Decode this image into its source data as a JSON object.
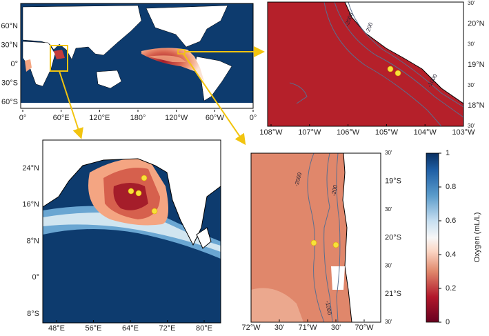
{
  "world_map": {
    "lat_labels": [
      "60°N",
      "30°N",
      "0°",
      "30°S",
      "60°S"
    ],
    "lon_labels": [
      "0°",
      "60°E",
      "120°E",
      "180°",
      "120°W",
      "60°W",
      "0°"
    ]
  },
  "east_pacific_map": {
    "lon_labels": [
      "108°W",
      "107°W",
      "106°W",
      "105°W",
      "104°W",
      "103°W"
    ],
    "lat_labels": [
      "30'",
      "20°N",
      "30'",
      "19°N",
      "30'",
      "18°N",
      "30'"
    ],
    "contour_labels": [
      "-2000",
      "-200",
      "-1000"
    ]
  },
  "arabian_sea_map": {
    "lat_labels": [
      "24°N",
      "16°N",
      "8°N",
      "0°",
      "8°S"
    ],
    "lon_labels": [
      "48°E",
      "56°E",
      "64°E",
      "72°E",
      "80°E"
    ]
  },
  "peru_chile_map": {
    "lon_labels": [
      "72°W",
      "30'",
      "71°W",
      "30'",
      "70°W"
    ],
    "lat_labels": [
      "30'",
      "19°S",
      "30'",
      "20°S",
      "30'",
      "21°S",
      "30'"
    ],
    "contour_labels": [
      "-2000",
      "-200",
      "-1000"
    ]
  },
  "colorbar": {
    "ticks": [
      0,
      0.2,
      0.4,
      0.6,
      0.8,
      1
    ],
    "label": "Oxygen (mL/L)"
  }
}
